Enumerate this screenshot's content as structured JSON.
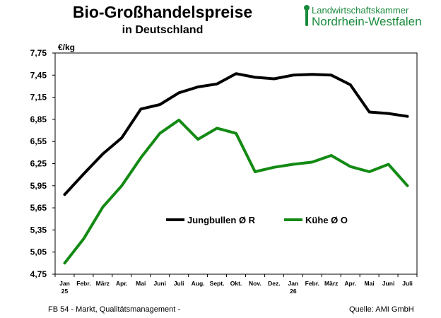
{
  "header": {
    "title": "Bio-Großhandelspreise",
    "subtitle": "in Deutschland"
  },
  "logo": {
    "line1": "Landwirtschaftskammer",
    "line2": "Nordrhein-Westfalen",
    "color": "#1a8a3c"
  },
  "footer": {
    "left": "FB 54 - Markt, Qualitätsmanagement -",
    "right": "Quelle: AMI GmbH"
  },
  "chart_data": {
    "type": "line",
    "ylabel": "€/kg",
    "ylim": [
      4.75,
      7.75
    ],
    "yticks": [
      "7,75",
      "7,45",
      "7,15",
      "6,85",
      "6,55",
      "6,25",
      "5,95",
      "5,65",
      "5,35",
      "5,05",
      "4,75"
    ],
    "categories": [
      "Jan",
      "Febr.",
      "März",
      "Apr.",
      "Mai",
      "Juni",
      "Juli",
      "Aug.",
      "Sept.",
      "Okt.",
      "Nov.",
      "Dez.",
      "Jan",
      "Febr.",
      "März",
      "Apr.",
      "Mai",
      "Juni",
      "Juli"
    ],
    "year_labels": [
      {
        "index": 0,
        "text": "25"
      },
      {
        "index": 12,
        "text": "26"
      }
    ],
    "legend_position": "center",
    "grid": false,
    "series": [
      {
        "name": "Jungbullen Ø R",
        "color": "#000000",
        "values": [
          5.83,
          6.11,
          6.38,
          6.6,
          6.99,
          7.05,
          7.21,
          7.29,
          7.33,
          7.47,
          7.42,
          7.4,
          7.45,
          7.46,
          7.45,
          7.32,
          6.95,
          6.93,
          6.89
        ]
      },
      {
        "name": "Kühe Ø O",
        "color": "#138a13",
        "values": [
          4.9,
          5.23,
          5.66,
          5.95,
          6.33,
          6.66,
          6.84,
          6.58,
          6.73,
          6.66,
          6.14,
          6.2,
          6.24,
          6.27,
          6.36,
          6.21,
          6.14,
          6.24,
          5.95
        ]
      }
    ]
  }
}
